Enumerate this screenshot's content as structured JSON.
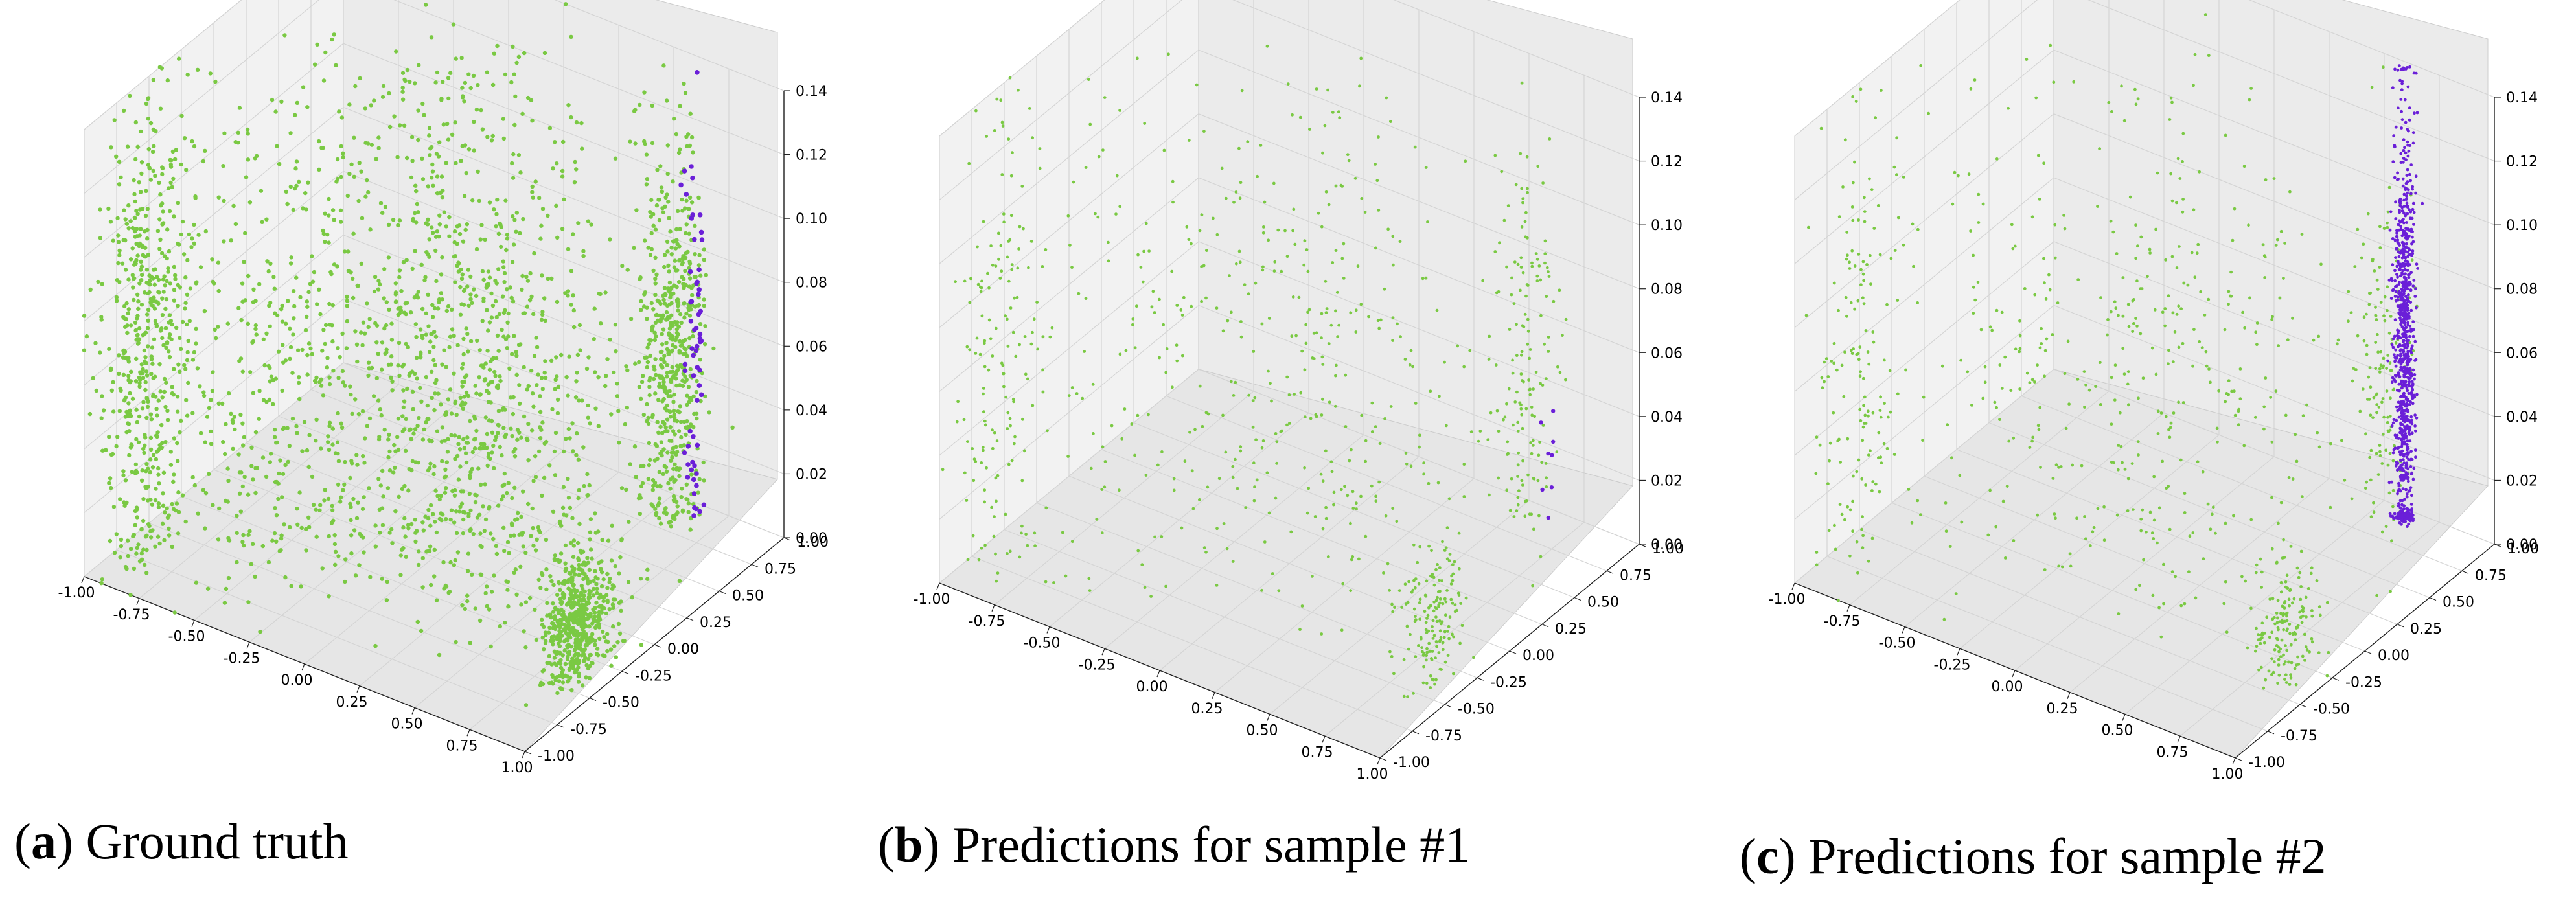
{
  "chart_data": [
    {
      "type": "scatter3d",
      "caption": {
        "letter": "a",
        "text": "Ground truth"
      },
      "axes": {
        "x_ticks": [
          "-1.00",
          "-0.75",
          "-0.50",
          "-0.25",
          "0.00",
          "0.25",
          "0.50",
          "0.75",
          "1.00"
        ],
        "y_ticks": [
          "-1.00",
          "-0.75",
          "-0.50",
          "-0.25",
          "0.00",
          "0.25",
          "0.50",
          "0.75",
          "1.00"
        ],
        "z_ticks": [
          "0.00",
          "0.02",
          "0.04",
          "0.06",
          "0.08",
          "0.10",
          "0.12",
          "0.14"
        ],
        "xlim": [
          -1,
          1
        ],
        "ylim": [
          -1,
          1
        ],
        "zlim": [
          0,
          0.14
        ],
        "grid": true
      },
      "series": [
        {
          "color": "#7ac943",
          "density": "very dense",
          "clusters": [
            {
              "x": -0.95,
              "y": -0.6,
              "z": 0.06,
              "spread": [
                0.05,
                0.15,
                0.04
              ]
            },
            {
              "x": -0.5,
              "y": -0.2,
              "z": 0.05,
              "spread": [
                0.3,
                0.4,
                0.045
              ]
            },
            {
              "x": -0.1,
              "y": 0.25,
              "z": 0.06,
              "spread": [
                0.2,
                0.3,
                0.05
              ]
            },
            {
              "x": 0.35,
              "y": 0.05,
              "z": 0.05,
              "spread": [
                0.25,
                0.35,
                0.045
              ]
            },
            {
              "x": 0.85,
              "y": -0.35,
              "z": 0.015,
              "spread": [
                0.05,
                0.1,
                0.01
              ]
            },
            {
              "x": 0.55,
              "y": 0.9,
              "z": 0.05,
              "spread": [
                0.06,
                0.08,
                0.03
              ]
            }
          ]
        },
        {
          "color": "#6a1fd8",
          "density": "dense",
          "clusters": [
            {
              "x": 0.62,
              "y": 0.95,
              "z": 0.05,
              "spread": [
                0.02,
                0.02,
                0.04
              ]
            }
          ]
        }
      ]
    },
    {
      "type": "scatter3d",
      "caption": {
        "letter": "b",
        "text": "Predictions for sample #1"
      },
      "axes": {
        "x_ticks": [
          "-1.00",
          "-0.75",
          "-0.50",
          "-0.25",
          "0.00",
          "0.25",
          "0.50",
          "0.75",
          "1.00"
        ],
        "y_ticks": [
          "-1.00",
          "-0.75",
          "-0.50",
          "-0.25",
          "0.00",
          "0.25",
          "0.50",
          "0.75",
          "1.00"
        ],
        "z_ticks": [
          "0.00",
          "0.02",
          "0.04",
          "0.06",
          "0.08",
          "0.10",
          "0.12",
          "0.14"
        ],
        "xlim": [
          -1,
          1
        ],
        "ylim": [
          -1,
          1
        ],
        "zlim": [
          0,
          0.14
        ],
        "grid": true
      },
      "series": [
        {
          "color": "#7ac943",
          "density": "sparse",
          "clusters": [
            {
              "x": -0.95,
              "y": -0.6,
              "z": 0.06,
              "spread": [
                0.05,
                0.15,
                0.04
              ]
            },
            {
              "x": -0.5,
              "y": -0.2,
              "z": 0.05,
              "spread": [
                0.3,
                0.4,
                0.045
              ]
            },
            {
              "x": -0.1,
              "y": 0.25,
              "z": 0.06,
              "spread": [
                0.2,
                0.3,
                0.05
              ]
            },
            {
              "x": 0.35,
              "y": 0.05,
              "z": 0.05,
              "spread": [
                0.25,
                0.35,
                0.045
              ]
            },
            {
              "x": 0.85,
              "y": -0.35,
              "z": 0.015,
              "spread": [
                0.05,
                0.1,
                0.01
              ]
            },
            {
              "x": 0.55,
              "y": 0.9,
              "z": 0.05,
              "spread": [
                0.06,
                0.08,
                0.03
              ]
            }
          ]
        },
        {
          "color": "#6a1fd8",
          "density": "very sparse",
          "clusters": [
            {
              "x": 0.62,
              "y": 0.95,
              "z": 0.02,
              "spread": [
                0.02,
                0.02,
                0.015
              ]
            }
          ]
        }
      ]
    },
    {
      "type": "scatter3d",
      "caption": {
        "letter": "c",
        "text": "Predictions for sample #2"
      },
      "axes": {
        "x_ticks": [
          "-1.00",
          "-0.75",
          "-0.50",
          "-0.25",
          "0.00",
          "0.25",
          "0.50",
          "0.75",
          "1.00"
        ],
        "y_ticks": [
          "-1.00",
          "-0.75",
          "-0.50",
          "-0.25",
          "0.00",
          "0.25",
          "0.50",
          "0.75",
          "1.00"
        ],
        "z_ticks": [
          "0.00",
          "0.02",
          "0.04",
          "0.06",
          "0.08",
          "0.10",
          "0.12",
          "0.14"
        ],
        "xlim": [
          -1,
          1
        ],
        "ylim": [
          -1,
          1
        ],
        "zlim": [
          0,
          0.14
        ],
        "grid": true
      },
      "series": [
        {
          "color": "#7ac943",
          "density": "sparse",
          "clusters": [
            {
              "x": -0.95,
              "y": -0.6,
              "z": 0.06,
              "spread": [
                0.05,
                0.15,
                0.04
              ]
            },
            {
              "x": -0.5,
              "y": -0.2,
              "z": 0.05,
              "spread": [
                0.3,
                0.4,
                0.045
              ]
            },
            {
              "x": -0.1,
              "y": 0.25,
              "z": 0.06,
              "spread": [
                0.2,
                0.3,
                0.05
              ]
            },
            {
              "x": 0.35,
              "y": 0.05,
              "z": 0.05,
              "spread": [
                0.25,
                0.35,
                0.045
              ]
            },
            {
              "x": 0.85,
              "y": -0.35,
              "z": 0.015,
              "spread": [
                0.05,
                0.1,
                0.01
              ]
            },
            {
              "x": 0.55,
              "y": 0.9,
              "z": 0.05,
              "spread": [
                0.06,
                0.08,
                0.03
              ]
            }
          ]
        },
        {
          "color": "#6a1fd8",
          "density": "sparse",
          "clusters": [
            {
              "x": 0.62,
              "y": 0.95,
              "z": 0.05,
              "spread": [
                0.02,
                0.02,
                0.04
              ]
            }
          ]
        }
      ]
    }
  ]
}
